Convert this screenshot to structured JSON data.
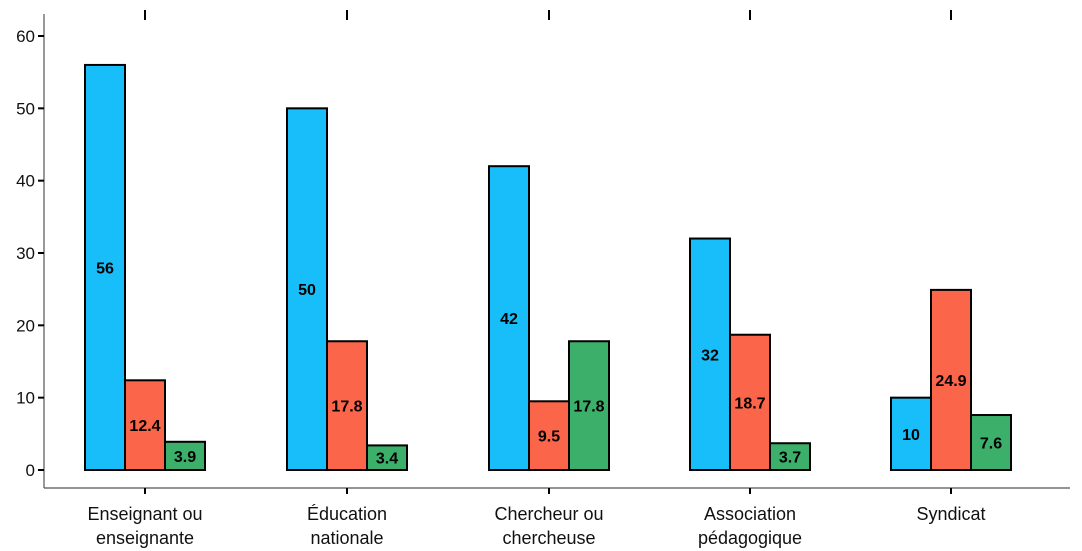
{
  "chart_data": {
    "type": "bar",
    "title": "",
    "xlabel": "",
    "ylabel": "",
    "ylim": [
      0,
      60
    ],
    "yticks": [
      0,
      10,
      20,
      30,
      40,
      50,
      60
    ],
    "grid": false,
    "legend": "none",
    "categories": [
      [
        "Enseignant ou",
        "enseignante"
      ],
      [
        "Éducation",
        "nationale"
      ],
      [
        "Chercheur ou",
        "chercheuse"
      ],
      [
        "Association",
        "pédagogique"
      ],
      [
        "Syndicat"
      ]
    ],
    "series": [
      {
        "color": "#17bef9",
        "values": [
          56,
          50,
          42,
          32,
          10
        ]
      },
      {
        "color": "#fb6549",
        "values": [
          12.4,
          17.8,
          9.5,
          18.7,
          24.9
        ]
      },
      {
        "color": "#3caf6a",
        "values": [
          3.9,
          3.4,
          17.8,
          3.7,
          7.6
        ]
      }
    ],
    "data_labels": [
      [
        "56",
        "50",
        "42",
        "32",
        "10"
      ],
      [
        "12.4",
        "17.8",
        "9.5",
        "18.7",
        "24.9"
      ],
      [
        "3.9",
        "3.4",
        "17.8",
        "3.7",
        "7.6"
      ]
    ]
  }
}
